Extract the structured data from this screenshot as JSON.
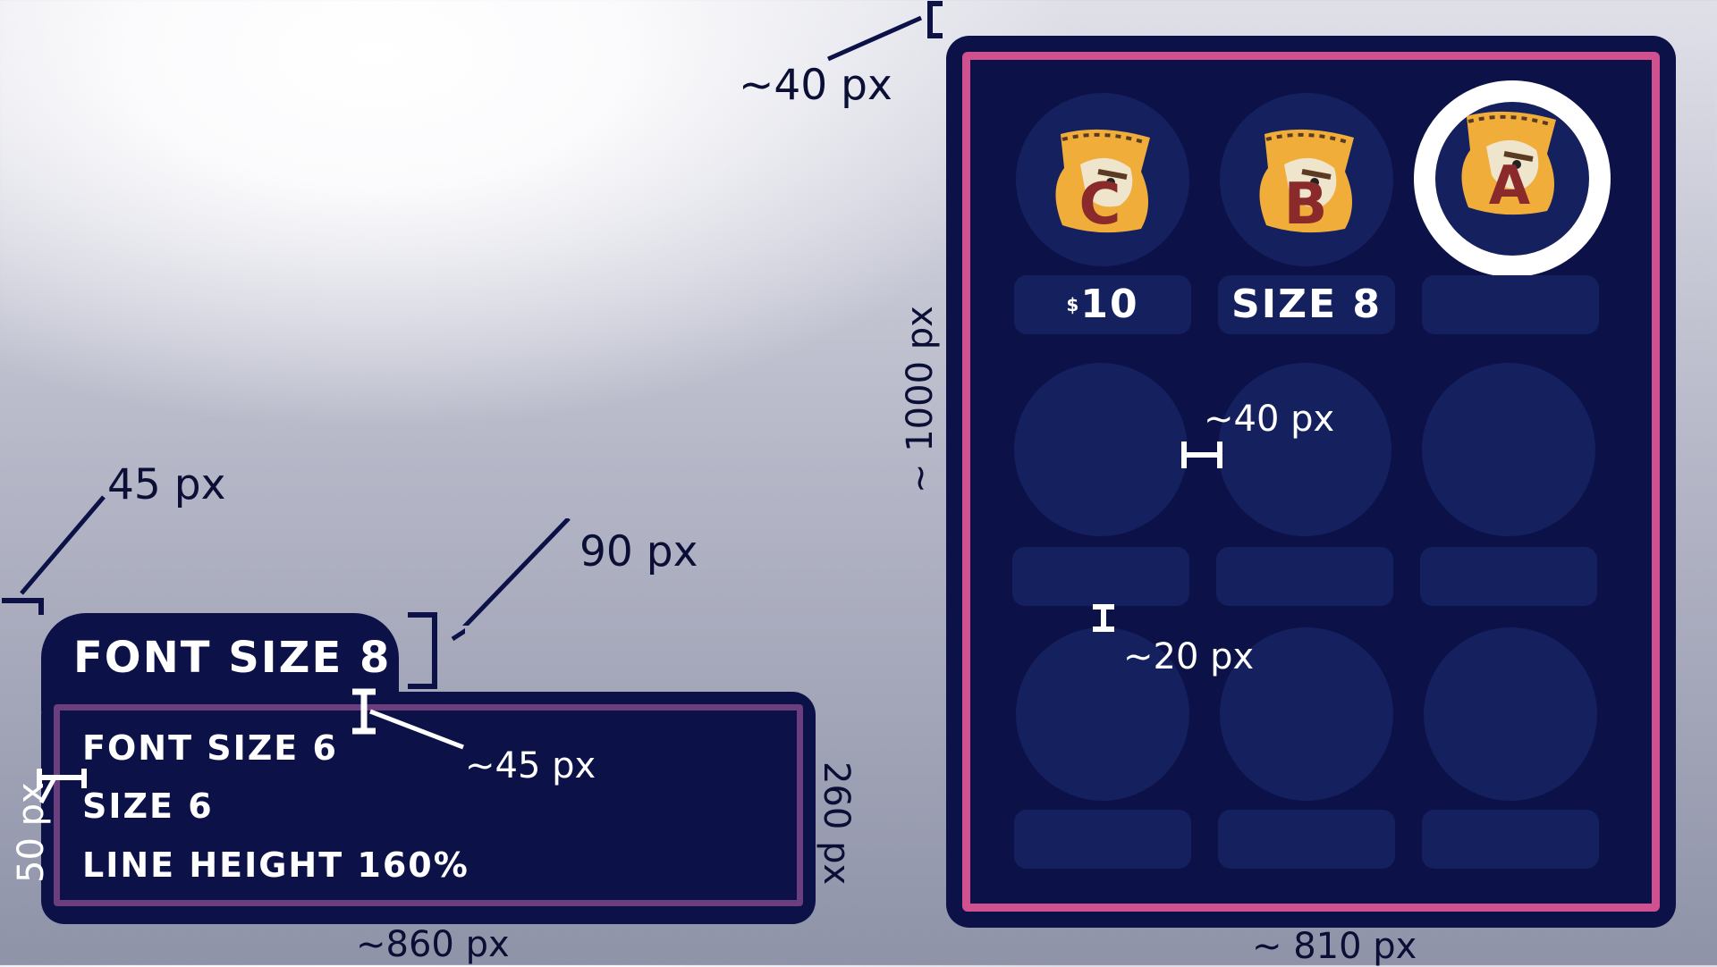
{
  "annotations": {
    "top_margin": "~40 px",
    "left_margin": "45 px",
    "tab_height": "90 px",
    "tab_text_gap": "~45 px",
    "line_spacing": "50 px",
    "panel_height": "260 px",
    "panel_width": "~860 px",
    "shop_height": "~ 1000 px",
    "shop_width": "~ 810 px",
    "slot_gap_h": "~40 px",
    "slot_gap_v": "~20 px"
  },
  "dialog": {
    "tab_title": "FONT SIZE 8",
    "lines": [
      "FONT SIZE 6",
      "SIZE 6",
      "LINE HEIGHT 160%"
    ]
  },
  "shop": {
    "items": [
      {
        "letter": "C",
        "label": "$10",
        "currency": "$",
        "amount": "10"
      },
      {
        "letter": "B",
        "label": "SIZE 8"
      },
      {
        "letter": "A",
        "label": "",
        "selected": true
      }
    ]
  },
  "colors": {
    "panel": "#0c1148",
    "panel_border_left": "#6b3f7e",
    "panel_border_right": "#d1508f",
    "slot": "#15205e",
    "bag": "#f0ad3a",
    "letter": "#8a2a2a"
  }
}
